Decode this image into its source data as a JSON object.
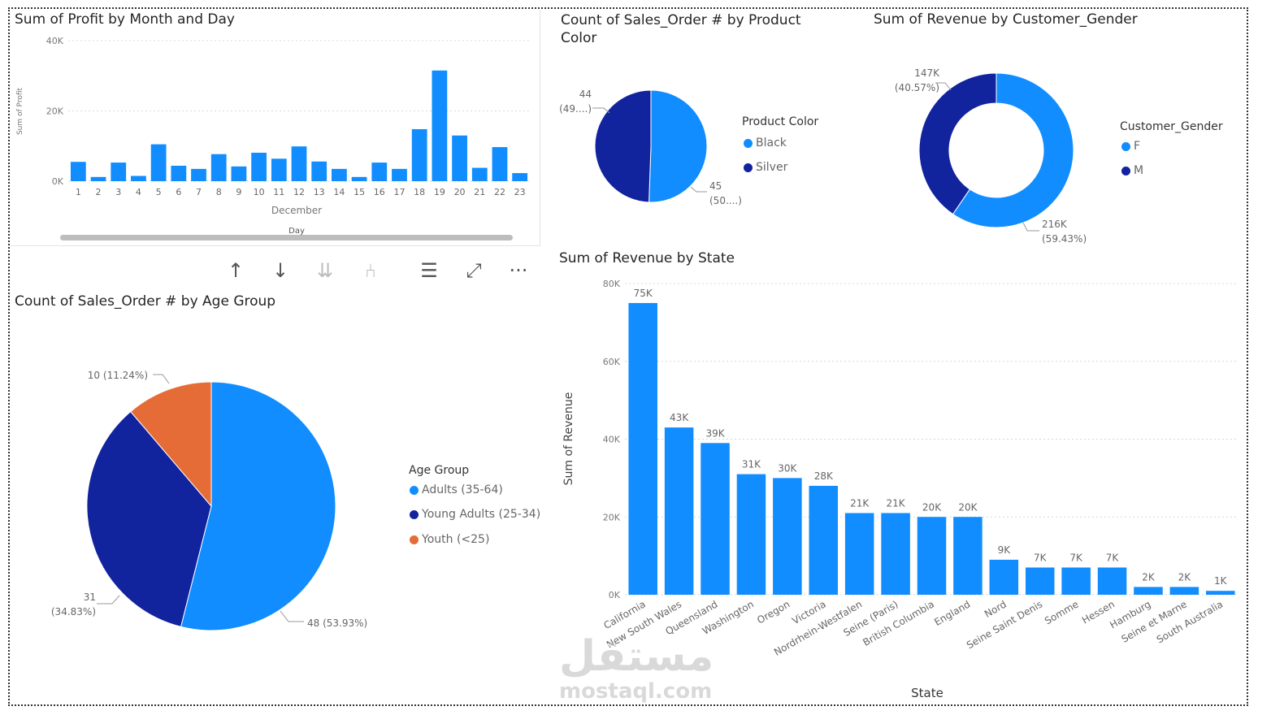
{
  "colors": {
    "blue": "#118DFF",
    "navy": "#12239E",
    "orange": "#E66C37",
    "grid": "#d8d8d8"
  },
  "toolbar": {
    "items": [
      {
        "name": "sort-up-icon",
        "glyph": "↑"
      },
      {
        "name": "sort-down-icon",
        "glyph": "↓"
      },
      {
        "name": "expand-all-down-icon",
        "glyph": "⇊"
      },
      {
        "name": "drill-hierarchy-icon",
        "glyph": "⑃"
      },
      {
        "name": "filter-icon",
        "glyph": "☰"
      },
      {
        "name": "focus-mode-icon",
        "glyph": "⤢"
      },
      {
        "name": "more-options-icon",
        "glyph": "···"
      }
    ]
  },
  "watermark": {
    "arabic": "مستقل",
    "latin": "mostaql.com"
  },
  "chart_data": [
    {
      "id": "profit",
      "type": "bar",
      "title": "Sum of Profit by Month and Day",
      "ylabel": "Sum of Profit",
      "xlabel": "December",
      "xlabel2": "Day",
      "ylim": [
        0,
        40000
      ],
      "yticks": [
        0,
        20000,
        40000
      ],
      "ytick_labels": [
        "0K",
        "20K",
        "40K"
      ],
      "categories": [
        "1",
        "2",
        "3",
        "4",
        "5",
        "6",
        "7",
        "8",
        "9",
        "10",
        "11",
        "12",
        "13",
        "14",
        "15",
        "16",
        "17",
        "18",
        "19",
        "20",
        "21",
        "22",
        "23"
      ],
      "values": [
        5500,
        1200,
        5300,
        1500,
        10500,
        4400,
        3500,
        7700,
        4200,
        8100,
        6400,
        9900,
        5600,
        3500,
        1200,
        5300,
        3500,
        14800,
        31500,
        13000,
        3800,
        9700,
        2300
      ]
    },
    {
      "id": "color",
      "type": "pie",
      "title": "Count of Sales_Order # by Product Color",
      "legend_title": "Product Color",
      "labels": [
        "Black",
        "Silver"
      ],
      "values": [
        45,
        44
      ],
      "data_labels": [
        [
          "45",
          "(50....)"
        ],
        [
          "44",
          "(49....)"
        ]
      ]
    },
    {
      "id": "gender",
      "type": "pie",
      "donut": true,
      "title": "Sum of Revenue by Customer_Gender",
      "legend_title": "Customer_Gender",
      "labels": [
        "F",
        "M"
      ],
      "values": [
        216,
        147
      ],
      "data_labels": [
        [
          "216K",
          "(59.43%)"
        ],
        [
          "147K",
          "(40.57%)"
        ]
      ]
    },
    {
      "id": "age",
      "type": "pie",
      "title": "Count of Sales_Order # by Age Group",
      "legend_title": "Age Group",
      "labels": [
        "Adults (35-64)",
        "Young Adults (25-34)",
        "Youth (<25)"
      ],
      "values": [
        48,
        31,
        10
      ],
      "data_labels": [
        [
          "48 (53.93%)"
        ],
        [
          "31",
          "(34.83%)"
        ],
        [
          "10 (11.24%)"
        ]
      ]
    },
    {
      "id": "state",
      "type": "bar",
      "title": "Sum of Revenue by State",
      "ylabel": "Sum of Revenue",
      "xlabel": "State",
      "ylim": [
        0,
        80000
      ],
      "yticks": [
        0,
        20000,
        40000,
        60000,
        80000
      ],
      "ytick_labels": [
        "0K",
        "20K",
        "40K",
        "60K",
        "80K"
      ],
      "categories": [
        "California",
        "New South Wales",
        "Queensland",
        "Washington",
        "Oregon",
        "Victoria",
        "Nordrhein-Westfalen",
        "Seine (Paris)",
        "British Columbia",
        "England",
        "Nord",
        "Seine Saint Denis",
        "Somme",
        "Hessen",
        "Hamburg",
        "Seine et Marne",
        "South Australia"
      ],
      "values": [
        75000,
        43000,
        39000,
        31000,
        30000,
        28000,
        21000,
        21000,
        20000,
        20000,
        9000,
        7000,
        7000,
        7000,
        2000,
        2000,
        1000
      ],
      "data_labels": [
        "75K",
        "43K",
        "39K",
        "31K",
        "30K",
        "28K",
        "21K",
        "21K",
        "20K",
        "20K",
        "9K",
        "7K",
        "7K",
        "7K",
        "2K",
        "2K",
        "1K"
      ]
    }
  ]
}
